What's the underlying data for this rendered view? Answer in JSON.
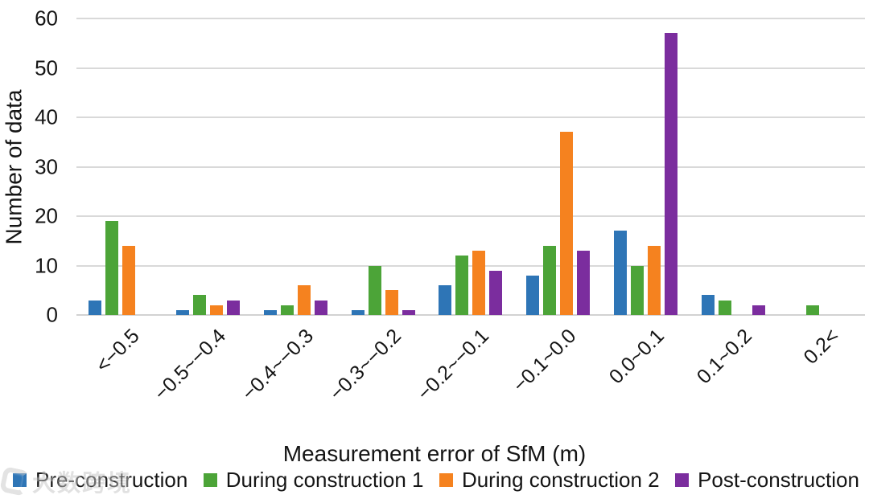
{
  "chart_data": {
    "type": "bar",
    "title": "",
    "xlabel": "Measurement error of SfM (m)",
    "ylabel": "Number of data",
    "ylim": [
      0,
      60
    ],
    "yticks": [
      0,
      10,
      20,
      30,
      40,
      50,
      60
    ],
    "grid": "horizontal",
    "gridline_color": "#d9d9d9",
    "legend_position": "bottom",
    "categories": [
      "<−0.5",
      "−0.5~−0.4",
      "−0.4~−0.3",
      "−0.3~−0.2",
      "−0.2~−0.1",
      "−0.1~0.0",
      "0.0~0.1",
      "0.1~0.2",
      "0.2<"
    ],
    "series": [
      {
        "name": "Pre-construction",
        "color": "#2E75B6",
        "values": [
          3,
          1,
          1,
          1,
          6,
          8,
          17,
          4,
          0
        ]
      },
      {
        "name": "During construction 1",
        "color": "#4CA438",
        "values": [
          19,
          4,
          2,
          10,
          12,
          14,
          10,
          3,
          2
        ]
      },
      {
        "name": "During construction 2",
        "color": "#F5821F",
        "values": [
          14,
          2,
          6,
          5,
          13,
          37,
          14,
          0,
          0
        ]
      },
      {
        "name": "Post-construction",
        "color": "#7B2D9E",
        "values": [
          0,
          3,
          3,
          1,
          9,
          13,
          57,
          2,
          0
        ]
      }
    ]
  },
  "watermark": {
    "text": "大数跨境",
    "icon": "rounded-c-logo"
  }
}
